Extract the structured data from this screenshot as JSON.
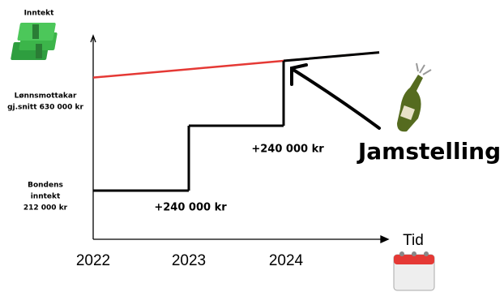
{
  "chart_data": {
    "type": "step",
    "title": "Inntekt",
    "x_label": "Tid",
    "categories": [
      "2022",
      "2023",
      "2024",
      null
    ],
    "series": [
      {
        "color": "#e53935",
        "values": [
          630000,
          661000,
          692000,
          723000
        ]
      },
      {
        "color": "#000000",
        "values": [
          212000,
          452000,
          692000,
          723000
        ]
      }
    ],
    "series_labels": [
      {
        "lines": [
          "Lønnsmottakar",
          "gj.snitt 630 000 kr"
        ]
      },
      {
        "lines": [
          "Bondens",
          "inntekt",
          "212 000 kr"
        ]
      }
    ],
    "step_labels": [
      "+240 000 kr",
      "+240 000 kr"
    ],
    "highlight": "Jamstelling"
  }
}
